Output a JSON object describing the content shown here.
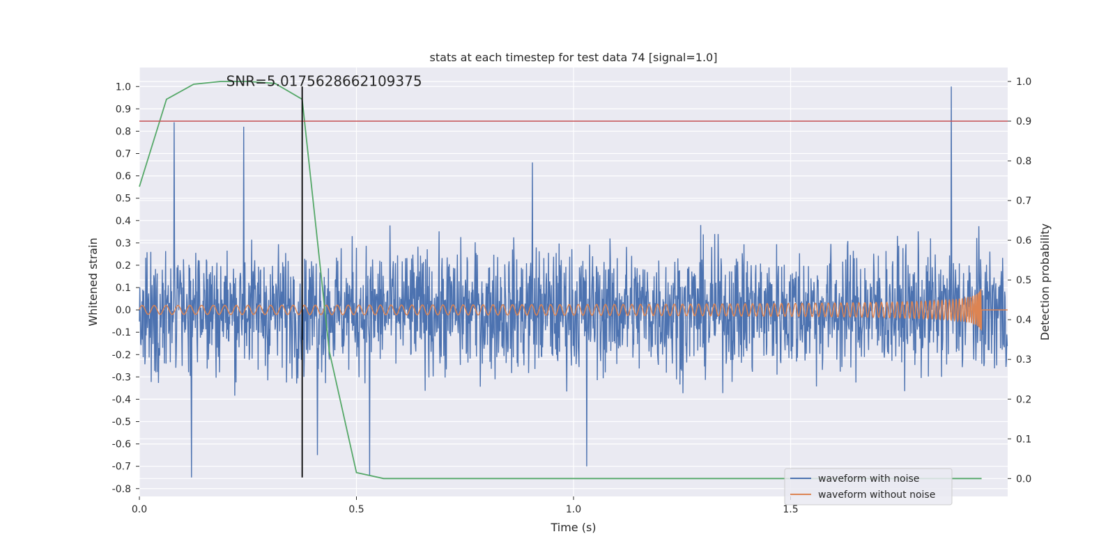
{
  "chart_data": {
    "type": "line",
    "title": "stats at each timestep for test data 74 [signal=1.0]",
    "xlabel": "Time (s)",
    "ylabel_left": "Whitened strain",
    "ylabel_right": "Detection probability",
    "xlim": [
      0.0,
      2.0
    ],
    "ylim_left": [
      -0.835,
      1.085
    ],
    "ylim_right": [
      -0.045,
      1.035
    ],
    "x_ticks": [
      "0.0",
      "0.5",
      "1.0",
      "1.5"
    ],
    "x_tick_values": [
      0.0,
      0.5,
      1.0,
      1.5
    ],
    "y_left_ticks": [
      "1.0",
      "0.9",
      "0.8",
      "0.7",
      "0.6",
      "0.5",
      "0.4",
      "0.3",
      "0.2",
      "0.1",
      "0.0",
      "-0.1",
      "-0.2",
      "-0.3",
      "-0.4",
      "-0.5",
      "-0.6",
      "-0.7",
      "-0.8"
    ],
    "y_left_tick_values": [
      1.0,
      0.9,
      0.8,
      0.7,
      0.6,
      0.5,
      0.4,
      0.3,
      0.2,
      0.1,
      0.0,
      -0.1,
      -0.2,
      -0.3,
      -0.4,
      -0.5,
      -0.6,
      -0.7,
      -0.8
    ],
    "y_right_ticks": [
      "1.0",
      "0.9",
      "0.8",
      "0.7",
      "0.6",
      "0.5",
      "0.4",
      "0.3",
      "0.2",
      "0.1",
      "0.0"
    ],
    "y_right_tick_values": [
      1.0,
      0.9,
      0.8,
      0.7,
      0.6,
      0.5,
      0.4,
      0.3,
      0.2,
      0.1,
      0.0
    ],
    "annotation": "SNR=5.0175628662109375",
    "annotation_x": 0.2,
    "annotation_y": 1.0,
    "grid": true,
    "legend_position": "lower right",
    "series": [
      {
        "name": "waveform with noise",
        "axis": "left",
        "color": "#4c72b0",
        "style": "noisy trace, amplitude about ±0.5 with peaks near 1.0 at x=1.87 and -0.75 at x=0.12"
      },
      {
        "name": "waveform without noise",
        "axis": "left",
        "color": "#dd8452",
        "style": "chirp oscillation, amplitude 0.02 growing to 0.12 at x=1.94, then flat 0"
      }
    ],
    "probability_series": {
      "axis": "right",
      "color": "#55a868",
      "x": [
        0.0,
        0.0625,
        0.125,
        0.1875,
        0.25,
        0.3125,
        0.375,
        0.4375,
        0.5,
        0.5625,
        0.625,
        1.0,
        1.5,
        1.94
      ],
      "y": [
        0.735,
        0.955,
        0.993,
        1.0,
        1.0,
        0.995,
        0.955,
        0.32,
        0.015,
        0.0,
        0.0,
        0.0,
        0.0,
        0.0
      ]
    },
    "threshold": {
      "axis": "right",
      "value": 0.9,
      "color": "#c44e52"
    },
    "vertical_marker": {
      "x": 0.375,
      "y_from": -0.75,
      "y_to": 1.0,
      "color": "#000000"
    }
  },
  "colors": {
    "plot_bg": "#eaeaf2",
    "grid": "#ffffff",
    "text": "#262626"
  }
}
